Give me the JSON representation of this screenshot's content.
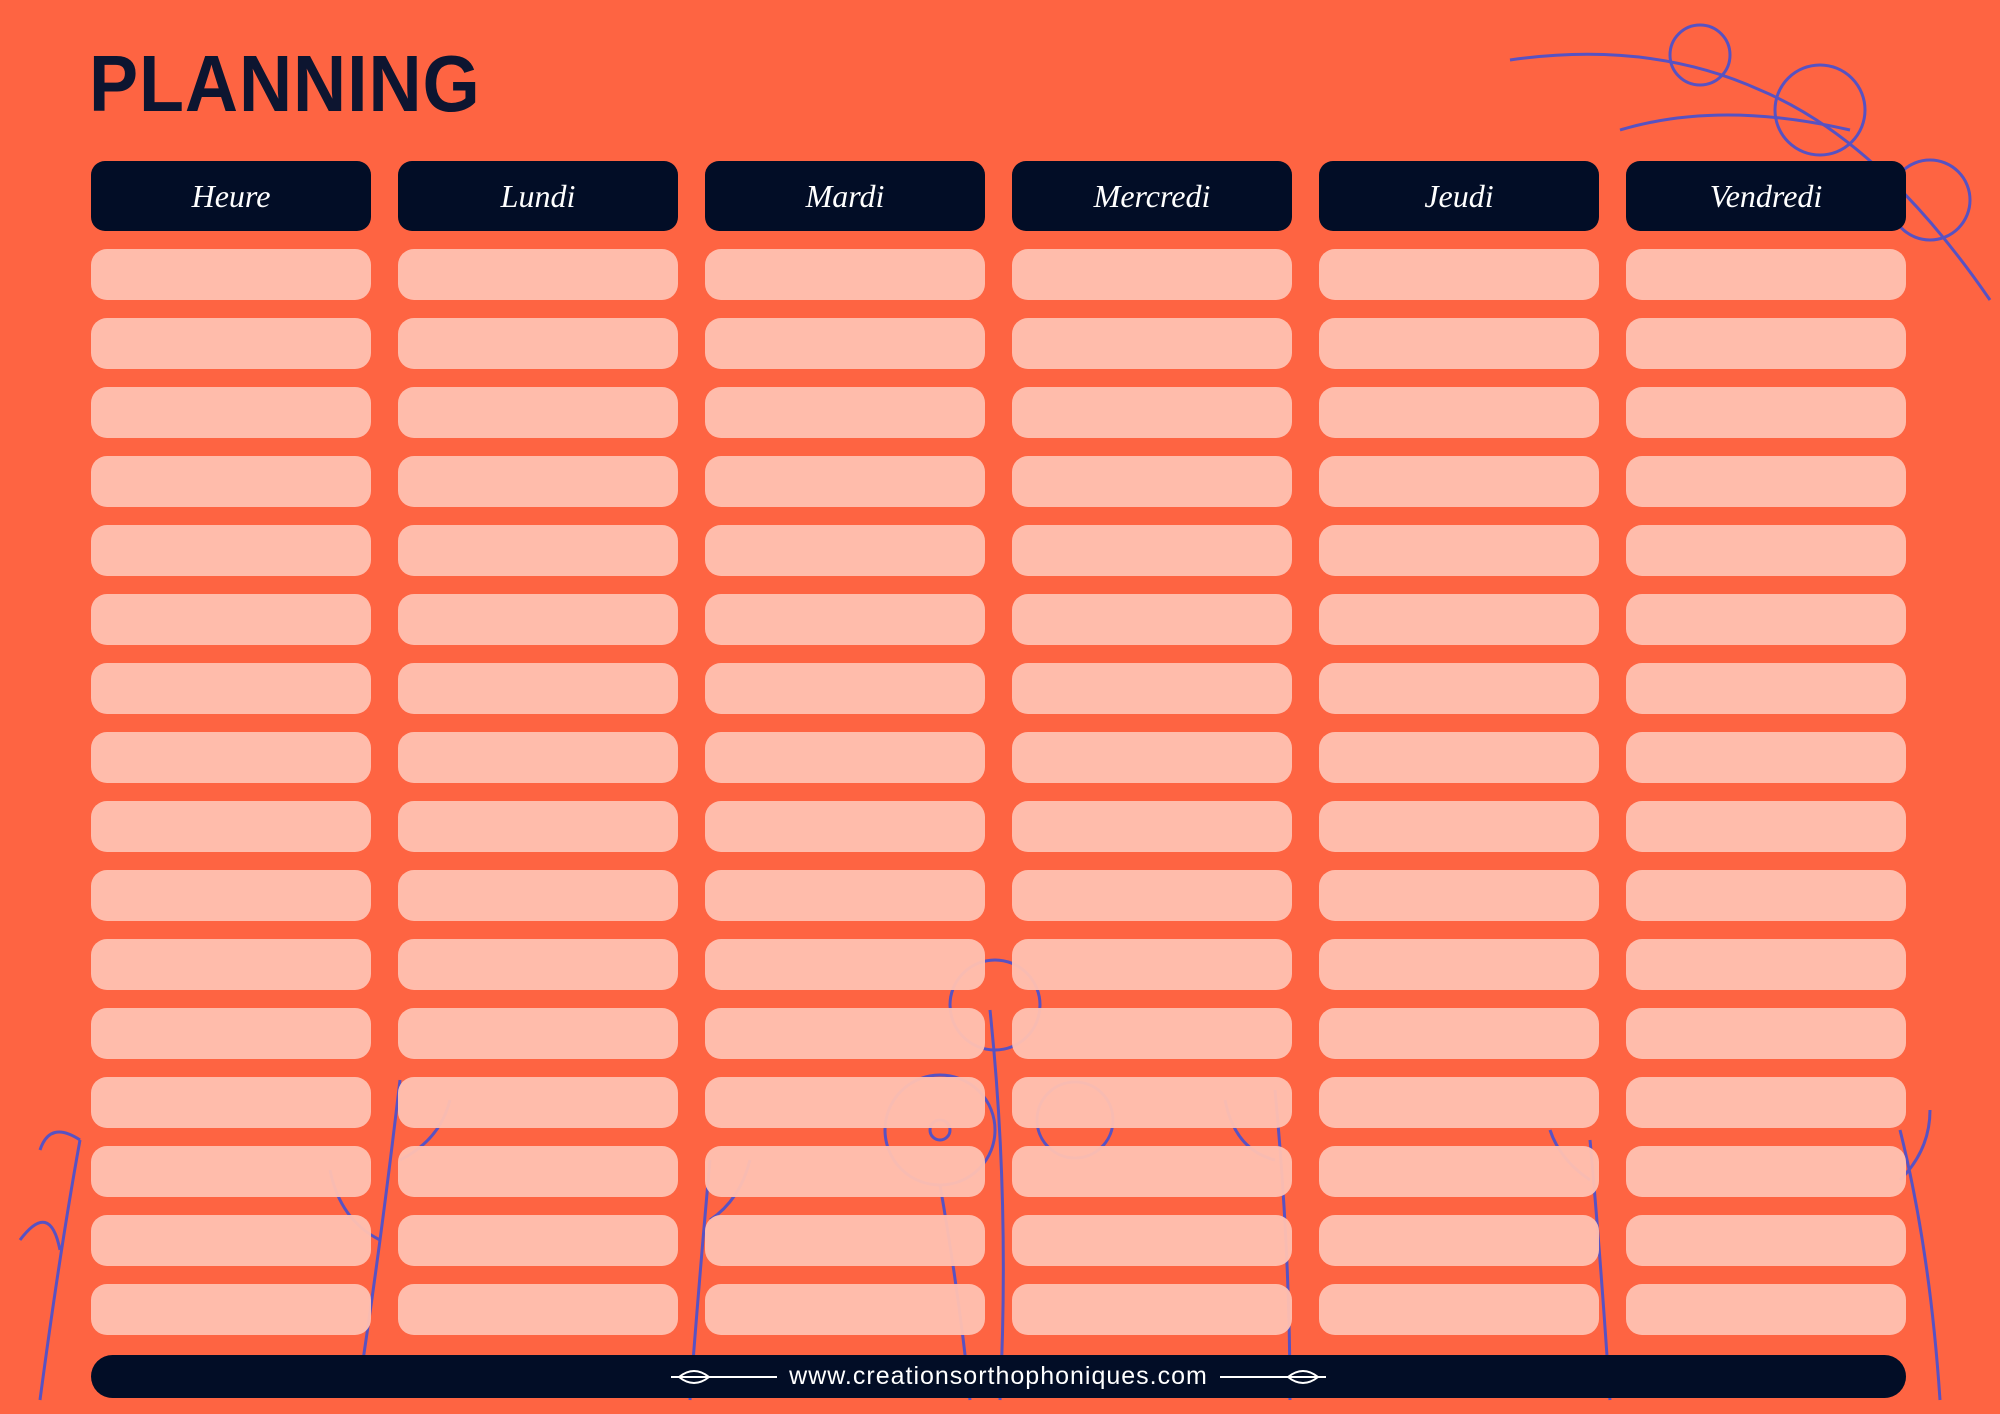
{
  "header": {
    "title": "PLANNING"
  },
  "table": {
    "headers": [
      "Heure",
      "Lundi",
      "Mardi",
      "Mercredi",
      "Jeudi",
      "Vendredi"
    ]
  },
  "footer": {
    "url": "www.creationsorthophoniques.com"
  }
}
